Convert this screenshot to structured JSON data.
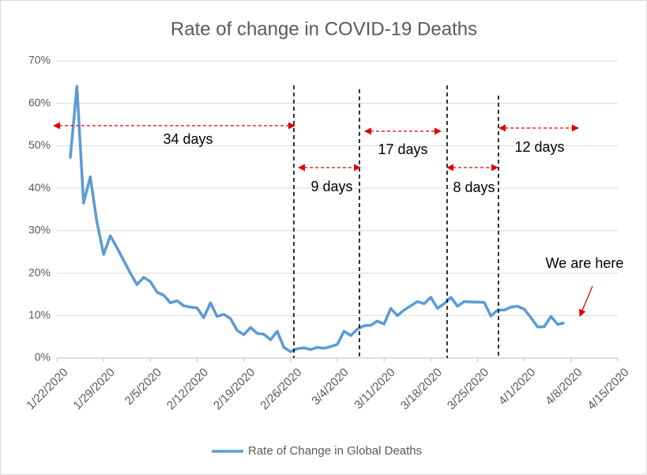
{
  "chart_data": {
    "type": "line",
    "title": "Rate of change in COVID-19 Deaths",
    "x": [
      "1/24/2020",
      "1/25/2020",
      "1/26/2020",
      "1/27/2020",
      "1/28/2020",
      "1/29/2020",
      "1/30/2020",
      "1/31/2020",
      "2/1/2020",
      "2/2/2020",
      "2/3/2020",
      "2/4/2020",
      "2/5/2020",
      "2/6/2020",
      "2/7/2020",
      "2/8/2020",
      "2/9/2020",
      "2/10/2020",
      "2/11/2020",
      "2/12/2020",
      "2/13/2020",
      "2/14/2020",
      "2/15/2020",
      "2/16/2020",
      "2/17/2020",
      "2/18/2020",
      "2/19/2020",
      "2/20/2020",
      "2/21/2020",
      "2/22/2020",
      "2/23/2020",
      "2/24/2020",
      "2/25/2020",
      "2/26/2020",
      "2/27/2020",
      "2/28/2020",
      "2/29/2020",
      "3/1/2020",
      "3/2/2020",
      "3/3/2020",
      "3/4/2020",
      "3/5/2020",
      "3/6/2020",
      "3/7/2020",
      "3/8/2020",
      "3/9/2020",
      "3/10/2020",
      "3/11/2020",
      "3/12/2020",
      "3/13/2020",
      "3/14/2020",
      "3/15/2020",
      "3/16/2020",
      "3/17/2020",
      "3/18/2020",
      "3/19/2020",
      "3/20/2020",
      "3/21/2020",
      "3/22/2020",
      "3/23/2020",
      "3/24/2020",
      "3/25/2020",
      "3/26/2020",
      "3/27/2020",
      "3/28/2020",
      "3/29/2020",
      "3/30/2020",
      "3/31/2020",
      "4/1/2020",
      "4/2/2020",
      "4/3/2020",
      "4/4/2020",
      "4/5/2020",
      "4/6/2020",
      "4/7/2020"
    ],
    "series": [
      {
        "name": "Rate of Change in Global Deaths",
        "color": "#5b9bd5",
        "values": [
          47,
          64,
          36.5,
          42.7,
          32,
          24.4,
          28.8,
          26,
          23,
          20,
          17.3,
          19,
          18,
          15.5,
          14.8,
          13,
          13.5,
          12.3,
          12,
          11.8,
          9.5,
          13,
          9.8,
          10.3,
          9.3,
          6.5,
          5.5,
          7.2,
          5.8,
          5.6,
          4.3,
          6.3,
          2.5,
          1.5,
          2.2,
          2.4,
          2,
          2.5,
          2.3,
          2.7,
          3.2,
          6.3,
          5.3,
          6.8,
          7.6,
          7.7,
          8.7,
          8,
          11.7,
          10,
          11.3,
          12.3,
          13.3,
          12.8,
          14.3,
          11.7,
          12.8,
          14.3,
          12.2,
          13.3,
          13.2,
          13.2,
          13.1,
          9.9,
          11.3,
          11.3,
          12,
          12.2,
          11.5,
          9.5,
          7.3,
          7.4,
          9.8,
          7.9,
          8.3
        ]
      }
    ],
    "xlim": [
      "1/22/2020",
      "4/15/2020"
    ],
    "xticks": [
      "1/22/2020",
      "1/29/2020",
      "2/5/2020",
      "2/12/2020",
      "2/19/2020",
      "2/26/2020",
      "3/4/2020",
      "3/11/2020",
      "3/18/2020",
      "3/25/2020",
      "4/1/2020",
      "4/8/2020",
      "4/15/2020"
    ],
    "ylim": [
      0,
      70
    ],
    "yticks": [
      {
        "value": 0,
        "label": "0%"
      },
      {
        "value": 10,
        "label": "10%"
      },
      {
        "value": 20,
        "label": "20%"
      },
      {
        "value": 30,
        "label": "30%"
      },
      {
        "value": 40,
        "label": "40%"
      },
      {
        "value": 50,
        "label": "50%"
      },
      {
        "value": 60,
        "label": "60%"
      },
      {
        "value": 70,
        "label": "70%"
      }
    ],
    "legend": "bottom",
    "annotations": [
      "34 days",
      "9 days",
      "17 days",
      "8 days",
      "12 days",
      "We are here"
    ]
  }
}
